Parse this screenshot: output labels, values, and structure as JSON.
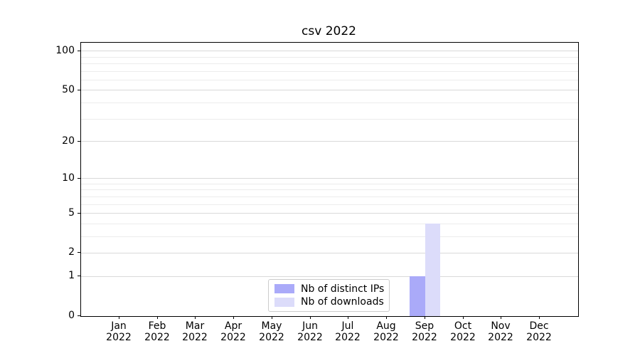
{
  "chart_data": {
    "type": "bar",
    "title": "csv 2022",
    "x_year": "2022",
    "categories": [
      "Jan",
      "Feb",
      "Mar",
      "Apr",
      "May",
      "Jun",
      "Jul",
      "Aug",
      "Sep",
      "Oct",
      "Nov",
      "Dec"
    ],
    "series": [
      {
        "name": "Nb of distinct IPs",
        "color": "#aaaaf9",
        "values": [
          0,
          0,
          0,
          0,
          0,
          0,
          0,
          0,
          1,
          0,
          0,
          0
        ]
      },
      {
        "name": "Nb of downloads",
        "color": "#dcdcfa",
        "values": [
          0,
          0,
          0,
          0,
          0,
          0,
          0,
          0,
          4,
          0,
          0,
          0
        ]
      }
    ],
    "yscale": "log1p",
    "ylim": [
      0,
      116
    ],
    "ytick_labels": [
      "0",
      "1",
      "2",
      "5",
      "10",
      "20",
      "50",
      "100"
    ],
    "ytick_values": [
      0,
      1,
      2,
      5,
      10,
      20,
      50,
      100
    ],
    "ygrid_major": [
      1,
      2,
      5,
      10,
      20,
      50,
      100
    ],
    "ygrid_minor": [
      3,
      4,
      6,
      7,
      8,
      9,
      30,
      40,
      60,
      70,
      80,
      90
    ],
    "grid": "horizontal major+minor",
    "legend_position": "bottom-center",
    "colors": {
      "grid_major": "#d9d9d9",
      "grid_minor": "#ececec",
      "spine": "#000000",
      "background": "#ffffff"
    }
  }
}
